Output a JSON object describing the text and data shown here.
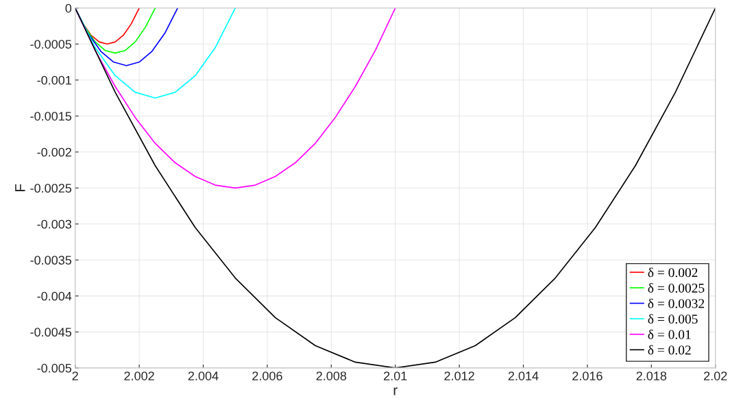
{
  "chart_data": {
    "type": "line",
    "xlabel": "r",
    "ylabel": "F",
    "xlim": [
      2,
      2.02
    ],
    "xticks": [
      2,
      2.002,
      2.004,
      2.006,
      2.008,
      2.01,
      2.012,
      2.014,
      2.016,
      2.018,
      2.02
    ],
    "ylim": [
      -0.005,
      0
    ],
    "yticks": [
      -0.005,
      -0.0045,
      -0.004,
      -0.0035,
      -0.003,
      -0.0025,
      -0.002,
      -0.0015,
      -0.001,
      -0.0005,
      0
    ],
    "grid": true,
    "legend": "bottom right",
    "marker": "none",
    "line_style": "solid",
    "series": [
      {
        "name": "δ = 0.002",
        "color": "#ff0000",
        "x": [
          2,
          2.00025,
          2.0005,
          2.00075,
          2.001,
          2.00125,
          2.0015,
          2.00175,
          2.002
        ],
        "values": [
          0,
          -0.00022,
          -0.00038,
          -0.00047,
          -0.0005,
          -0.00047,
          -0.00038,
          -0.00022,
          0
        ]
      },
      {
        "name": "δ = 0.0025",
        "color": "#00ff00",
        "x": [
          2,
          2.0003125,
          2.000625,
          2.0009375,
          2.00125,
          2.0015625,
          2.001875,
          2.0021875,
          2.0025
        ],
        "values": [
          0,
          -0.00027,
          -0.00047,
          -0.00059,
          -0.000625,
          -0.00059,
          -0.00047,
          -0.00027,
          0
        ]
      },
      {
        "name": "δ = 0.0032",
        "color": "#0000ff",
        "x": [
          2,
          2.0004,
          2.0008,
          2.0012,
          2.0016,
          2.002,
          2.0024,
          2.0028,
          2.0032
        ],
        "values": [
          0,
          -0.00035,
          -0.0006,
          -0.00075,
          -0.0008,
          -0.00075,
          -0.0006,
          -0.00035,
          0
        ]
      },
      {
        "name": "δ = 0.005",
        "color": "#00ffff",
        "x": [
          2,
          2.000625,
          2.00125,
          2.001875,
          2.0025,
          2.003125,
          2.00375,
          2.004375,
          2.005
        ],
        "values": [
          0,
          -0.00055,
          -0.00094,
          -0.00117,
          -0.00125,
          -0.00117,
          -0.00094,
          -0.00055,
          0
        ]
      },
      {
        "name": "δ = 0.01",
        "color": "#ff00ff",
        "x": [
          2,
          2.000625,
          2.00125,
          2.001875,
          2.0025,
          2.003125,
          2.00375,
          2.004375,
          2.005,
          2.005625,
          2.00625,
          2.006875,
          2.0075,
          2.008125,
          2.00875,
          2.009375,
          2.01
        ],
        "values": [
          0,
          -0.00059,
          -0.00109,
          -0.00152,
          -0.00188,
          -0.00215,
          -0.00234,
          -0.00246,
          -0.0025,
          -0.00246,
          -0.00234,
          -0.00215,
          -0.00188,
          -0.00152,
          -0.00109,
          -0.00059,
          0
        ]
      },
      {
        "name": "δ = 0.02",
        "color": "#000000",
        "x": [
          2,
          2.00125,
          2.0025,
          2.00375,
          2.005,
          2.00625,
          2.0075,
          2.00875,
          2.01,
          2.01125,
          2.0125,
          2.01375,
          2.015,
          2.01625,
          2.0175,
          2.01875,
          2.02
        ],
        "values": [
          0,
          -0.00117,
          -0.00219,
          -0.00305,
          -0.00375,
          -0.0043,
          -0.00469,
          -0.00492,
          -0.005,
          -0.00492,
          -0.00469,
          -0.0043,
          -0.00375,
          -0.00305,
          -0.00219,
          -0.00117,
          0
        ]
      }
    ]
  }
}
